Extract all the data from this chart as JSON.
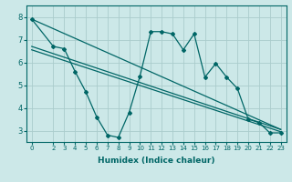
{
  "title": "",
  "xlabel": "Humidex (Indice chaleur)",
  "bg_color": "#cce8e8",
  "line_color": "#006666",
  "grid_color": "#aacccc",
  "xlim": [
    -0.5,
    23.5
  ],
  "ylim": [
    2.5,
    8.5
  ],
  "yticks": [
    3,
    4,
    5,
    6,
    7,
    8
  ],
  "xticks": [
    0,
    2,
    3,
    4,
    5,
    6,
    7,
    8,
    9,
    10,
    11,
    12,
    13,
    14,
    15,
    16,
    17,
    18,
    19,
    20,
    21,
    22,
    23
  ],
  "xtick_labels": [
    "0",
    "2",
    "3",
    "4",
    "5",
    "6",
    "7",
    "8",
    "9",
    "10",
    "11",
    "12",
    "13",
    "14",
    "15",
    "16",
    "17",
    "18",
    "19",
    "20",
    "21",
    "22",
    "23"
  ],
  "series_x": [
    0,
    2,
    3,
    4,
    5,
    6,
    7,
    8,
    9,
    10,
    11,
    12,
    13,
    14,
    15,
    16,
    17,
    18,
    19,
    20,
    21,
    22,
    23
  ],
  "series_y": [
    7.9,
    6.7,
    6.6,
    5.6,
    4.7,
    3.6,
    2.8,
    2.7,
    3.8,
    5.4,
    7.35,
    7.35,
    7.25,
    6.55,
    7.25,
    5.35,
    5.95,
    5.35,
    4.85,
    3.5,
    3.35,
    2.9,
    2.9
  ],
  "trend_x0": 0,
  "trend_x1": 23,
  "trend_y0_line1": 7.9,
  "trend_y1_line1": 3.05,
  "trend_y0_line2": 6.7,
  "trend_y1_line2": 3.05,
  "trend_y0_line3": 6.55,
  "trend_y1_line3": 2.95
}
